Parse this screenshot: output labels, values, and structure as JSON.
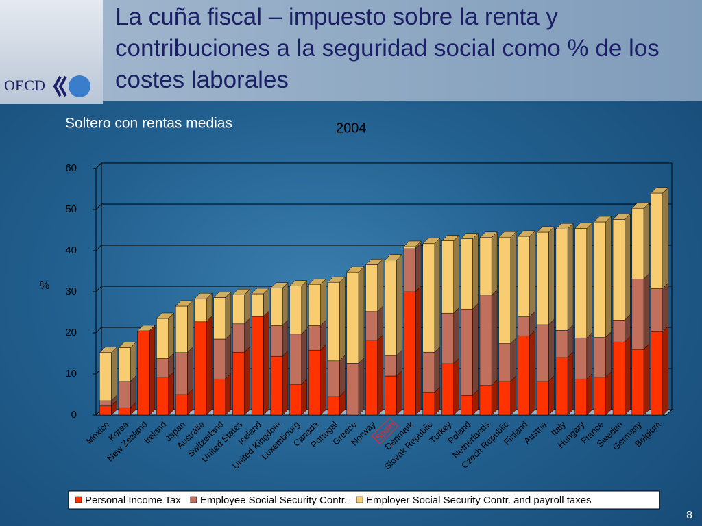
{
  "chart_data": {
    "type": "stacked-bar-3d",
    "title": "La cuña fiscal – impuesto sobre la renta y contribuciones a la seguridad social como % de los costes laborales",
    "subtitle": "Soltero con rentas medias",
    "annotation": "2004",
    "ylabel": "%",
    "categories": [
      "Mexico",
      "Korea",
      "New Zealand",
      "Ireland",
      "Japan",
      "Australia",
      "Switzerland",
      "United States",
      "Iceland",
      "United Kingdom",
      "Luxembourg",
      "Canada",
      "Portugal",
      "Greece",
      "Norway",
      "Spain",
      "Denmark",
      "Slovak Republic",
      "Turkey",
      "Poland",
      "Netherlands",
      "Czech Republic",
      "Finland",
      "Austria",
      "Italy",
      "Hungary",
      "France",
      "Sweden",
      "Germany",
      "Belgium"
    ],
    "highlighted_category": "Spain",
    "series": [
      {
        "name": "Personal Income Tax",
        "color": "#ff3300",
        "values": [
          2.2,
          1.8,
          20.5,
          9.2,
          5,
          22.7,
          8.8,
          15.3,
          24,
          14.3,
          7.5,
          15.8,
          4.5,
          0,
          18.2,
          9.5,
          30,
          5.5,
          12.5,
          4.8,
          7.2,
          8.2,
          19.3,
          8.2,
          14,
          8.8,
          9.2,
          17.8,
          16,
          20.3
        ]
      },
      {
        "name": "Employee Social Security Contr.",
        "color": "#c0705c",
        "values": [
          1.3,
          6.4,
          0,
          4.6,
          10.2,
          0,
          9.7,
          6.9,
          0,
          7.5,
          12.2,
          6,
          8.7,
          12.6,
          7,
          5,
          10.5,
          9.8,
          12.3,
          21,
          22,
          9.2,
          4.6,
          13.8,
          6.6,
          10,
          9.7,
          5.3,
          17.1,
          10.5
        ]
      },
      {
        "name": "Employer Social Security Contr. and payroll taxes",
        "color": "#f8cc70",
        "values": [
          11.7,
          8.2,
          0,
          9.7,
          11.3,
          5.6,
          10.1,
          7.1,
          5.5,
          9.1,
          11.7,
          10,
          19.1,
          22.2,
          11.4,
          23.2,
          0.5,
          26.4,
          17.6,
          17.1,
          14,
          25.9,
          19.6,
          22.5,
          24.7,
          26.6,
          28.1,
          24.5,
          17.2,
          23.2
        ]
      }
    ],
    "ylim": [
      0,
      60
    ],
    "yticks": [
      0,
      10,
      20,
      30,
      40,
      50,
      60
    ],
    "grid": true,
    "legend": "bottom"
  },
  "slide": {
    "page_number": "8"
  }
}
